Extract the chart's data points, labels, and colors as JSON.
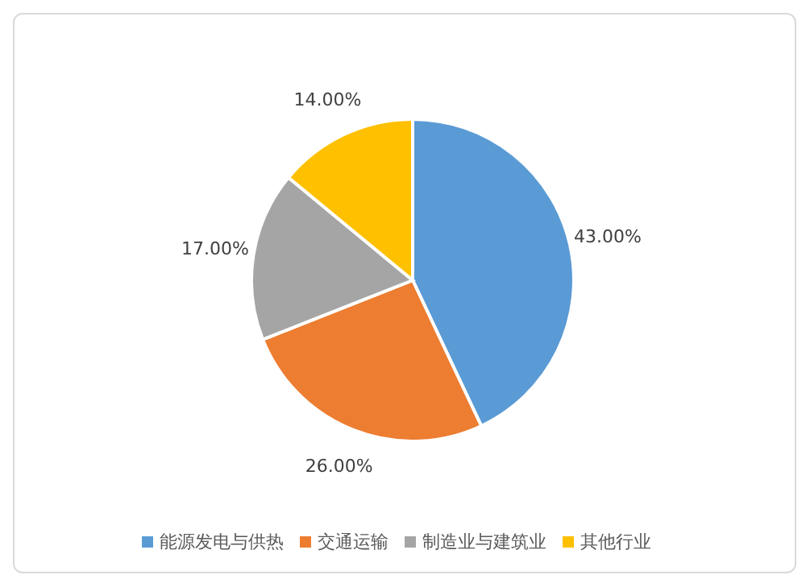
{
  "chart_data": {
    "type": "pie",
    "categories": [
      "能源发电与供热",
      "交通运输",
      "制造业与建筑业",
      "其他行业"
    ],
    "values": [
      43,
      26,
      17,
      14
    ],
    "colors": [
      "#5b9bd5",
      "#ed7d31",
      "#a5a5a5",
      "#ffc000"
    ],
    "value_labels": [
      "43.00%",
      "26.00%",
      "17.00%",
      "14.00%"
    ],
    "legend": "bottom"
  }
}
